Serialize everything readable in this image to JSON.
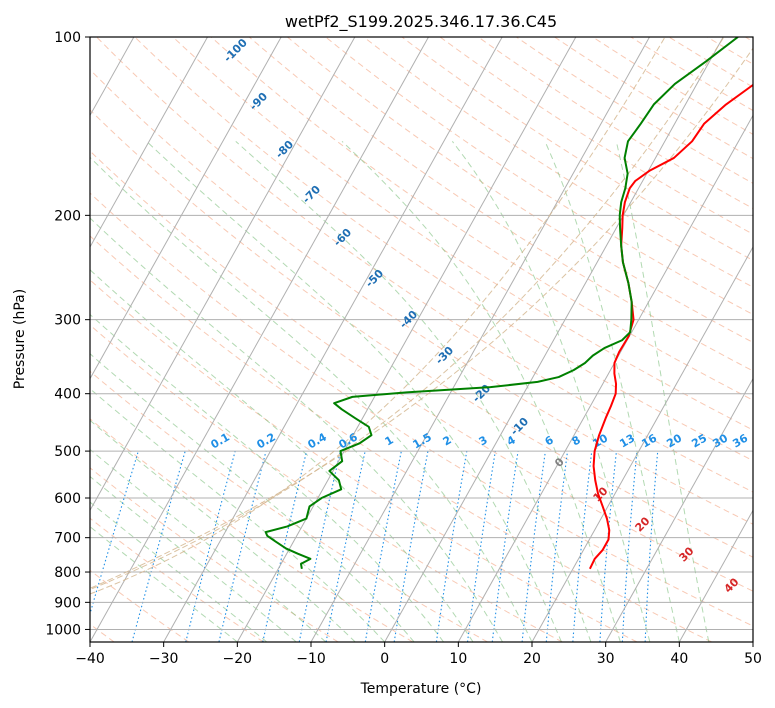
{
  "chart_data": {
    "type": "line",
    "title": "wetPf2_S199.2025.346.17.36.C45",
    "xlabel": "Temperature (°C)",
    "ylabel": "Pressure (hPa)",
    "xlim": [
      -40,
      50
    ],
    "ylim_pressure": [
      1050,
      100
    ],
    "x_ticks": [
      -40,
      -30,
      -20,
      -10,
      0,
      10,
      20,
      30,
      40,
      50
    ],
    "y_ticks": [
      100,
      200,
      300,
      400,
      500,
      600,
      700,
      800,
      900,
      1000
    ],
    "skew_deg_per_decade": 45,
    "series": [
      {
        "name": "temperature",
        "color": "#ff0000",
        "points": [
          [
            790,
            22.3
          ],
          [
            760,
            22.2
          ],
          [
            735,
            22.6
          ],
          [
            705,
            22.6
          ],
          [
            680,
            22.0
          ],
          [
            650,
            20.8
          ],
          [
            620,
            19.3
          ],
          [
            590,
            17.7
          ],
          [
            560,
            16.3
          ],
          [
            530,
            15.0
          ],
          [
            500,
            14.0
          ],
          [
            470,
            13.4
          ],
          [
            440,
            13.0
          ],
          [
            420,
            12.8
          ],
          [
            400,
            12.5
          ],
          [
            385,
            11.8
          ],
          [
            370,
            10.8
          ],
          [
            355,
            10.0
          ],
          [
            340,
            9.8
          ],
          [
            320,
            9.9
          ],
          [
            300,
            9.3
          ],
          [
            280,
            7.7
          ],
          [
            260,
            5.8
          ],
          [
            240,
            3.5
          ],
          [
            225,
            2.0
          ],
          [
            210,
            0.8
          ],
          [
            200,
            -0.1
          ],
          [
            190,
            -0.8
          ],
          [
            180,
            -1.2
          ],
          [
            175,
            -1.0
          ],
          [
            168,
            0.2
          ],
          [
            160,
            2.5
          ],
          [
            150,
            3.7
          ],
          [
            140,
            4.0
          ],
          [
            130,
            5.5
          ],
          [
            120,
            7.8
          ],
          [
            112,
            9.0
          ],
          [
            105,
            9.2
          ],
          [
            100,
            9.6
          ]
        ]
      },
      {
        "name": "dewpoint",
        "color": "#008000",
        "points": [
          [
            790,
            -16.8
          ],
          [
            775,
            -17.3
          ],
          [
            760,
            -16.4
          ],
          [
            745,
            -18.5
          ],
          [
            730,
            -20.5
          ],
          [
            710,
            -22.5
          ],
          [
            695,
            -24.0
          ],
          [
            685,
            -24.5
          ],
          [
            670,
            -22.0
          ],
          [
            650,
            -20.0
          ],
          [
            620,
            -20.5
          ],
          [
            600,
            -19.5
          ],
          [
            580,
            -17.5
          ],
          [
            560,
            -18.5
          ],
          [
            540,
            -20.5
          ],
          [
            520,
            -19.5
          ],
          [
            500,
            -20.5
          ],
          [
            485,
            -18.5
          ],
          [
            470,
            -17.5
          ],
          [
            455,
            -18.5
          ],
          [
            440,
            -21.0
          ],
          [
            425,
            -23.5
          ],
          [
            415,
            -25.0
          ],
          [
            405,
            -23.0
          ],
          [
            398,
            -16.0
          ],
          [
            390,
            -5.0
          ],
          [
            382,
            1.0
          ],
          [
            375,
            3.5
          ],
          [
            365,
            5.0
          ],
          [
            355,
            6.0
          ],
          [
            345,
            6.5
          ],
          [
            335,
            7.5
          ],
          [
            325,
            9.3
          ],
          [
            315,
            9.8
          ],
          [
            300,
            9.0
          ],
          [
            280,
            7.7
          ],
          [
            260,
            5.8
          ],
          [
            240,
            3.5
          ],
          [
            225,
            2.0
          ],
          [
            210,
            0.5
          ],
          [
            200,
            -0.5
          ],
          [
            190,
            -1.3
          ],
          [
            180,
            -1.8
          ],
          [
            170,
            -2.6
          ],
          [
            160,
            -4.2
          ],
          [
            150,
            -5.0
          ],
          [
            140,
            -4.6
          ],
          [
            130,
            -4.3
          ],
          [
            120,
            -3.0
          ],
          [
            110,
            -0.5
          ],
          [
            100,
            2.0
          ]
        ]
      }
    ],
    "dry_adiabat_labels": [
      "-100",
      "-90",
      "-80",
      "-70",
      "-60",
      "-50",
      "-40",
      "-30",
      "-20",
      "-10",
      "0",
      "10",
      "20",
      "30",
      "40"
    ],
    "mixing_ratio_labels": [
      "0.1",
      "0.2",
      "0.4",
      "0.6",
      "1",
      "1.5",
      "2",
      "3",
      "4",
      "6",
      "8",
      "10",
      "13",
      "16",
      "20",
      "25",
      "30",
      "36"
    ],
    "colors": {
      "grid": "#b0b0b0",
      "dry_adiabat": "#f4a582",
      "moist_adiabat": "#7fbf7f",
      "mixing_ratio": "#1f8fe6",
      "adiabat_label": "#1f6fb4",
      "warm_label": "#d62728",
      "zero_label": "#808080",
      "tan_curve": "#d2b48c"
    }
  }
}
